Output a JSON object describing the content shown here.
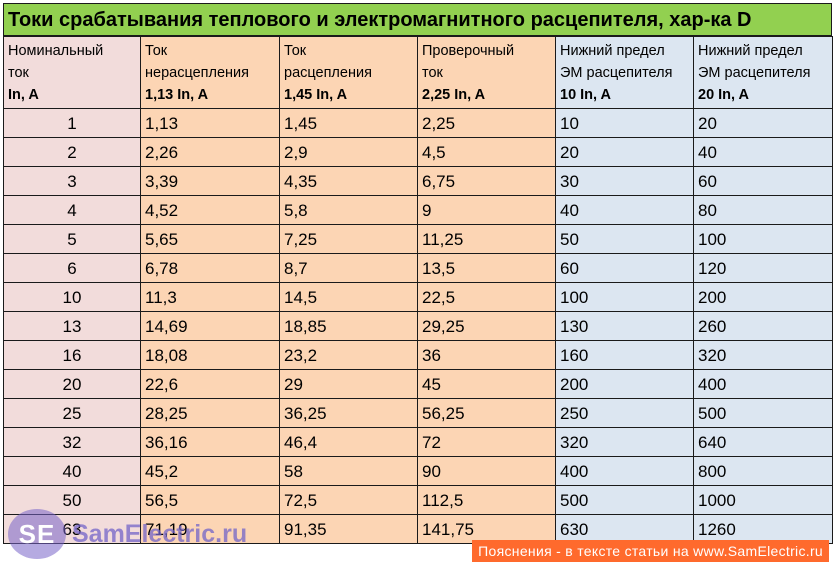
{
  "title": "Токи срабатывания теплового и электромагнитного расцепителя, хар-ка D",
  "columns": [
    {
      "line1": "Номинальный",
      "line2": "ток",
      "unit": "In, A"
    },
    {
      "line1": "Ток",
      "line2": "нерасцепления",
      "unit": "1,13 In, A"
    },
    {
      "line1": "Ток",
      "line2": "расцепления",
      "unit": "1,45 In, A"
    },
    {
      "line1": "Проверочный",
      "line2": "ток",
      "unit": "2,25 In, A"
    },
    {
      "line1": "Нижний предел",
      "line2": "ЭМ расцепителя",
      "unit": "10 In, A"
    },
    {
      "line1": "Нижний предел",
      "line2": "ЭМ расцепителя",
      "unit": "20 In, A"
    }
  ],
  "rows": [
    [
      "1",
      "1,13",
      "1,45",
      "2,25",
      "10",
      "20"
    ],
    [
      "2",
      "2,26",
      "2,9",
      "4,5",
      "20",
      "40"
    ],
    [
      "3",
      "3,39",
      "4,35",
      "6,75",
      "30",
      "60"
    ],
    [
      "4",
      "4,52",
      "5,8",
      "9",
      "40",
      "80"
    ],
    [
      "5",
      "5,65",
      "7,25",
      "11,25",
      "50",
      "100"
    ],
    [
      "6",
      "6,78",
      "8,7",
      "13,5",
      "60",
      "120"
    ],
    [
      "10",
      "11,3",
      "14,5",
      "22,5",
      "100",
      "200"
    ],
    [
      "13",
      "14,69",
      "18,85",
      "29,25",
      "130",
      "260"
    ],
    [
      "16",
      "18,08",
      "23,2",
      "36",
      "160",
      "320"
    ],
    [
      "20",
      "22,6",
      "29",
      "45",
      "200",
      "400"
    ],
    [
      "25",
      "28,25",
      "36,25",
      "56,25",
      "250",
      "500"
    ],
    [
      "32",
      "36,16",
      "46,4",
      "72",
      "320",
      "640"
    ],
    [
      "40",
      "45,2",
      "58",
      "90",
      "400",
      "800"
    ],
    [
      "50",
      "56,5",
      "72,5",
      "112,5",
      "500",
      "1000"
    ],
    [
      "63",
      "71,19",
      "91,35",
      "141,75",
      "630",
      "1260"
    ]
  ],
  "watermark": {
    "logo_text": "SE",
    "site": "SamElectric.ru"
  },
  "footer_note": "Пояснения - в тексте статьи на www.SamElectric.ru",
  "colors": {
    "title_bg": "#92d050",
    "col_nominal": "#f2dcdb",
    "col_thermal": "#fcd5b4",
    "col_em": "#dce6f1",
    "footer_bg": "#ff6a2d"
  }
}
